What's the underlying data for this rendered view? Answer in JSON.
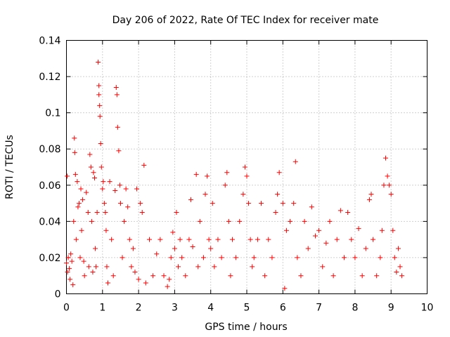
{
  "chart_data": {
    "type": "scatter",
    "title": "Day 206 of 2022, Rate Of TEC Index for receiver mate",
    "xlabel": "GPS time / hours",
    "ylabel": "ROTI / TECUs",
    "xlim": [
      0,
      10
    ],
    "ylim": [
      0,
      0.14
    ],
    "xticks": [
      0,
      1,
      2,
      3,
      4,
      5,
      6,
      7,
      8,
      9,
      10
    ],
    "yticks": [
      0,
      0.02,
      0.04,
      0.06,
      0.08,
      0.1,
      0.12,
      0.14
    ],
    "xtick_labels": [
      "0",
      "1",
      "2",
      "3",
      "4",
      "5",
      "6",
      "7",
      "8",
      "9",
      "10"
    ],
    "ytick_labels": [
      "0",
      "0.02",
      "0.04",
      "0.06",
      "0.08",
      "0.1",
      "0.12",
      "0.14"
    ],
    "grid": true,
    "marker": "+",
    "color": "#ff0000",
    "series": [
      {
        "name": "ROTI",
        "points": [
          [
            0.0,
            0.017
          ],
          [
            0.02,
            0.065
          ],
          [
            0.03,
            0.012
          ],
          [
            0.05,
            0.02
          ],
          [
            0.08,
            0.014
          ],
          [
            0.1,
            0.008
          ],
          [
            0.12,
            0.022
          ],
          [
            0.15,
            0.018
          ],
          [
            0.18,
            0.005
          ],
          [
            0.2,
            0.04
          ],
          [
            0.22,
            0.086
          ],
          [
            0.23,
            0.078
          ],
          [
            0.25,
            0.066
          ],
          [
            0.27,
            0.03
          ],
          [
            0.3,
            0.062
          ],
          [
            0.32,
            0.048
          ],
          [
            0.35,
            0.05
          ],
          [
            0.38,
            0.02
          ],
          [
            0.4,
            0.058
          ],
          [
            0.42,
            0.035
          ],
          [
            0.45,
            0.052
          ],
          [
            0.48,
            0.018
          ],
          [
            0.5,
            0.01
          ],
          [
            0.55,
            0.056
          ],
          [
            0.6,
            0.045
          ],
          [
            0.62,
            0.015
          ],
          [
            0.65,
            0.077
          ],
          [
            0.68,
            0.07
          ],
          [
            0.7,
            0.04
          ],
          [
            0.73,
            0.012
          ],
          [
            0.75,
            0.067
          ],
          [
            0.78,
            0.064
          ],
          [
            0.8,
            0.025
          ],
          [
            0.82,
            0.015
          ],
          [
            0.85,
            0.045
          ],
          [
            0.88,
            0.128
          ],
          [
            0.9,
            0.115
          ],
          [
            0.9,
            0.11
          ],
          [
            0.92,
            0.104
          ],
          [
            0.93,
            0.098
          ],
          [
            0.95,
            0.083
          ],
          [
            0.97,
            0.07
          ],
          [
            1.0,
            0.058
          ],
          [
            1.02,
            0.062
          ],
          [
            1.05,
            0.05
          ],
          [
            1.08,
            0.045
          ],
          [
            1.1,
            0.035
          ],
          [
            1.12,
            0.015
          ],
          [
            1.15,
            0.006
          ],
          [
            1.2,
            0.062
          ],
          [
            1.25,
            0.03
          ],
          [
            1.3,
            0.01
          ],
          [
            1.35,
            0.057
          ],
          [
            1.38,
            0.114
          ],
          [
            1.4,
            0.11
          ],
          [
            1.42,
            0.092
          ],
          [
            1.45,
            0.079
          ],
          [
            1.48,
            0.06
          ],
          [
            1.5,
            0.05
          ],
          [
            1.55,
            0.02
          ],
          [
            1.6,
            0.04
          ],
          [
            1.65,
            0.058
          ],
          [
            1.7,
            0.048
          ],
          [
            1.75,
            0.03
          ],
          [
            1.8,
            0.015
          ],
          [
            1.85,
            0.025
          ],
          [
            1.9,
            0.012
          ],
          [
            1.95,
            0.058
          ],
          [
            2.0,
            0.008
          ],
          [
            2.05,
            0.05
          ],
          [
            2.1,
            0.045
          ],
          [
            2.15,
            0.071
          ],
          [
            2.2,
            0.006
          ],
          [
            2.3,
            0.03
          ],
          [
            2.4,
            0.01
          ],
          [
            2.5,
            0.022
          ],
          [
            2.6,
            0.03
          ],
          [
            2.7,
            0.01
          ],
          [
            2.8,
            0.004
          ],
          [
            2.85,
            0.008
          ],
          [
            2.9,
            0.02
          ],
          [
            2.95,
            0.034
          ],
          [
            3.0,
            0.025
          ],
          [
            3.05,
            0.045
          ],
          [
            3.1,
            0.015
          ],
          [
            3.15,
            0.03
          ],
          [
            3.2,
            0.02
          ],
          [
            3.3,
            0.01
          ],
          [
            3.4,
            0.03
          ],
          [
            3.45,
            0.052
          ],
          [
            3.5,
            0.026
          ],
          [
            3.6,
            0.066
          ],
          [
            3.65,
            0.015
          ],
          [
            3.7,
            0.04
          ],
          [
            3.8,
            0.02
          ],
          [
            3.85,
            0.055
          ],
          [
            3.9,
            0.065
          ],
          [
            3.95,
            0.03
          ],
          [
            4.0,
            0.025
          ],
          [
            4.05,
            0.05
          ],
          [
            4.1,
            0.015
          ],
          [
            4.2,
            0.03
          ],
          [
            4.3,
            0.02
          ],
          [
            4.4,
            0.06
          ],
          [
            4.45,
            0.067
          ],
          [
            4.5,
            0.04
          ],
          [
            4.55,
            0.01
          ],
          [
            4.6,
            0.03
          ],
          [
            4.7,
            0.02
          ],
          [
            4.8,
            0.04
          ],
          [
            4.9,
            0.055
          ],
          [
            4.95,
            0.07
          ],
          [
            5.0,
            0.065
          ],
          [
            5.05,
            0.05
          ],
          [
            5.1,
            0.03
          ],
          [
            5.15,
            0.015
          ],
          [
            5.2,
            0.02
          ],
          [
            5.3,
            0.03
          ],
          [
            5.4,
            0.05
          ],
          [
            5.5,
            0.01
          ],
          [
            5.6,
            0.03
          ],
          [
            5.7,
            0.02
          ],
          [
            5.8,
            0.045
          ],
          [
            5.85,
            0.055
          ],
          [
            5.9,
            0.067
          ],
          [
            6.0,
            0.05
          ],
          [
            6.05,
            0.003
          ],
          [
            6.1,
            0.035
          ],
          [
            6.2,
            0.04
          ],
          [
            6.3,
            0.05
          ],
          [
            6.35,
            0.073
          ],
          [
            6.4,
            0.02
          ],
          [
            6.5,
            0.01
          ],
          [
            6.6,
            0.04
          ],
          [
            6.7,
            0.025
          ],
          [
            6.8,
            0.048
          ],
          [
            6.9,
            0.032
          ],
          [
            7.0,
            0.035
          ],
          [
            7.1,
            0.015
          ],
          [
            7.2,
            0.028
          ],
          [
            7.3,
            0.04
          ],
          [
            7.4,
            0.01
          ],
          [
            7.5,
            0.03
          ],
          [
            7.6,
            0.046
          ],
          [
            7.7,
            0.02
          ],
          [
            7.8,
            0.045
          ],
          [
            7.9,
            0.03
          ],
          [
            8.0,
            0.02
          ],
          [
            8.1,
            0.036
          ],
          [
            8.2,
            0.01
          ],
          [
            8.3,
            0.025
          ],
          [
            8.4,
            0.052
          ],
          [
            8.45,
            0.055
          ],
          [
            8.5,
            0.03
          ],
          [
            8.6,
            0.01
          ],
          [
            8.7,
            0.02
          ],
          [
            8.75,
            0.035
          ],
          [
            8.8,
            0.06
          ],
          [
            8.85,
            0.075
          ],
          [
            8.9,
            0.065
          ],
          [
            8.95,
            0.06
          ],
          [
            9.0,
            0.055
          ],
          [
            9.05,
            0.035
          ],
          [
            9.1,
            0.02
          ],
          [
            9.15,
            0.012
          ],
          [
            9.2,
            0.025
          ],
          [
            9.25,
            0.015
          ],
          [
            9.3,
            0.01
          ]
        ]
      }
    ]
  }
}
